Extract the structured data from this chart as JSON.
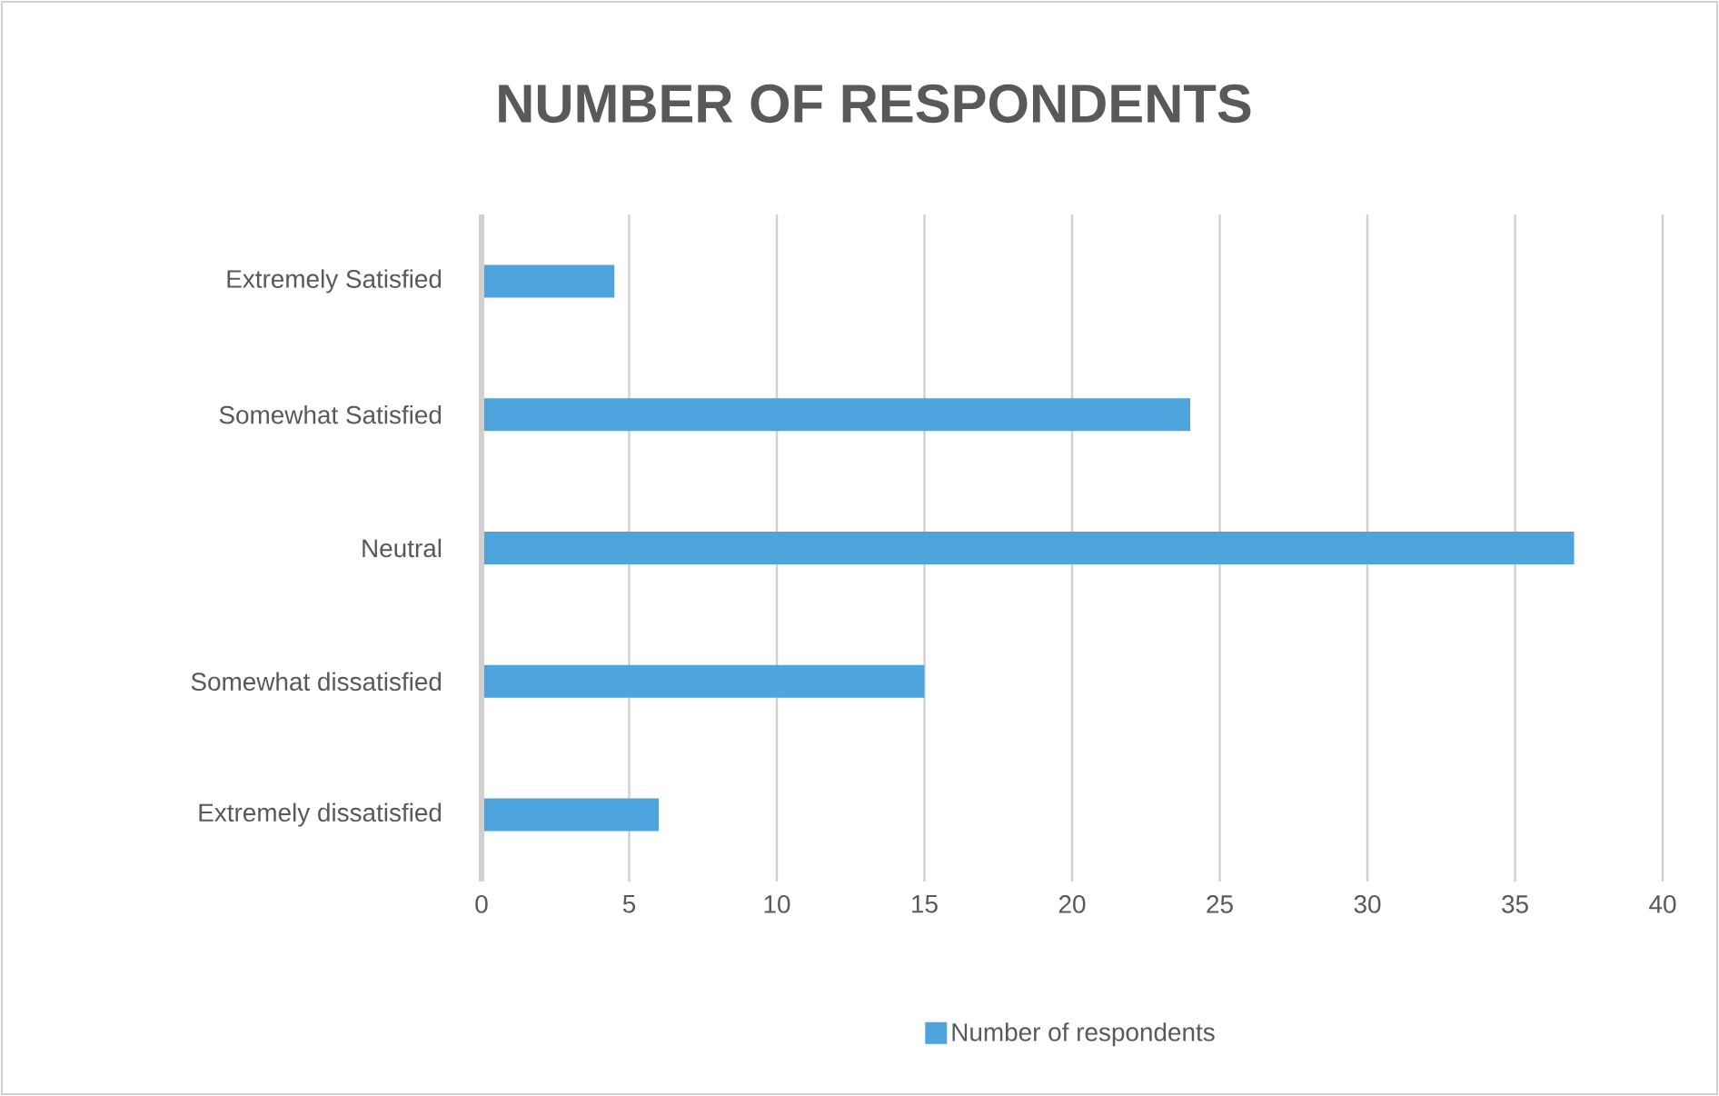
{
  "chart_data": {
    "type": "bar",
    "orientation": "horizontal",
    "title": "NUMBER OF RESPONDENTS",
    "categories": [
      "Extremely Satisfied",
      "Somewhat Satisfied",
      "Neutral",
      "Somewhat dissatisfied",
      "Extremely dissatisfied"
    ],
    "series": [
      {
        "name": "Number of respondents",
        "color": "#4ea4dc",
        "values": [
          4.5,
          24,
          37,
          15,
          6
        ]
      }
    ],
    "xlim": [
      0,
      40
    ],
    "xticks": [
      0,
      5,
      10,
      15,
      20,
      25,
      30,
      35,
      40
    ],
    "grid": "x",
    "legend": "bottom"
  }
}
